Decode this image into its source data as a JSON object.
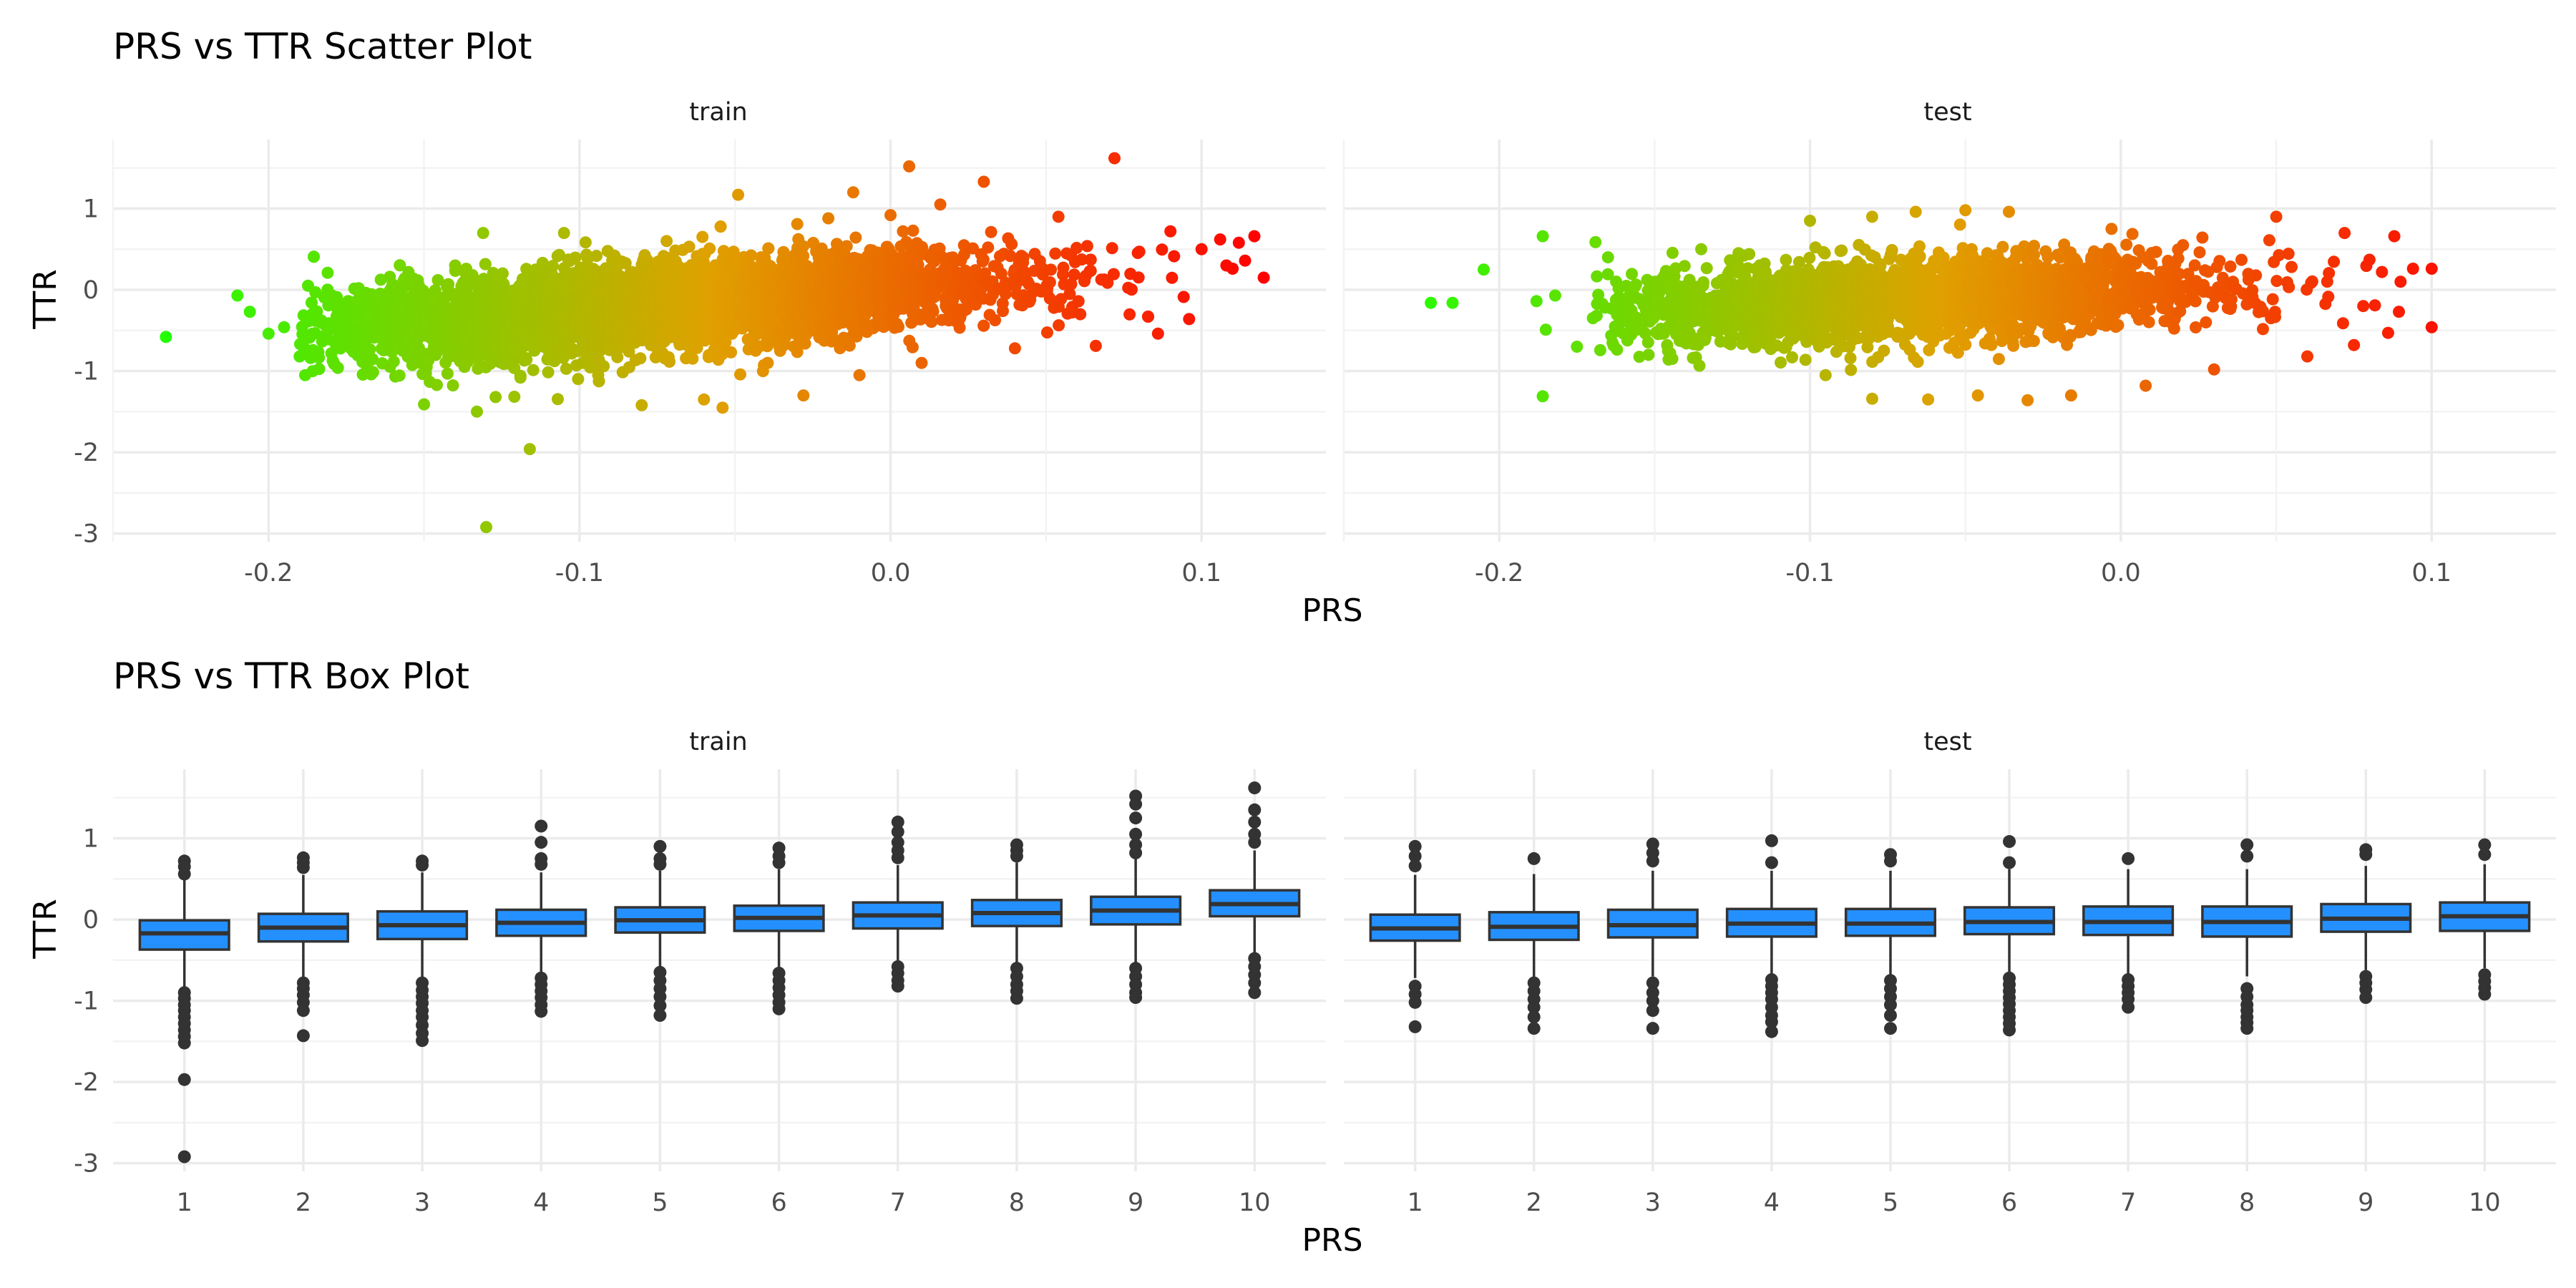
{
  "chart_data": [
    {
      "type": "scatter",
      "title": "PRS vs TTR Scatter Plot",
      "xlabel": "PRS",
      "ylabel": "TTR",
      "facets": [
        "train",
        "test"
      ],
      "xlim": [
        -0.25,
        0.14
      ],
      "ylim": [
        -3.1,
        1.85
      ],
      "xticks": [
        -0.2,
        -0.1,
        0.0,
        0.1
      ],
      "xtick_labels": [
        "-0.2",
        "-0.1",
        "0.0",
        "0.1"
      ],
      "yticks": [
        -3,
        -2,
        -1,
        0,
        1
      ],
      "ytick_labels": [
        "-3",
        "-2",
        "-1",
        "0",
        "1"
      ],
      "color_scale": {
        "low": "#22ff00",
        "mid": "#e0a000",
        "high": "#ff0000",
        "by": "PRS"
      },
      "grid": true,
      "legend": "none",
      "series": [
        {
          "facet": "train",
          "trend": {
            "intercept": 0.0,
            "slope": 2.8,
            "x_range": [
              -0.19,
              0.1
            ],
            "sd": 0.26
          },
          "points": [
            [
              -0.233,
              -0.58
            ],
            [
              -0.21,
              -0.07
            ],
            [
              -0.206,
              -0.27
            ],
            [
              -0.2,
              -0.54
            ],
            [
              -0.195,
              -0.46
            ],
            [
              -0.19,
              -0.82
            ],
            [
              -0.186,
              -0.3
            ],
            [
              -0.181,
              0.21
            ],
            [
              -0.176,
              -0.6
            ],
            [
              -0.171,
              0.02
            ],
            [
              -0.167,
              -1.04
            ],
            [
              -0.161,
              0.16
            ],
            [
              -0.155,
              0.22
            ],
            [
              -0.15,
              -1.41
            ],
            [
              -0.146,
              -0.35
            ],
            [
              -0.14,
              0.3
            ],
            [
              -0.133,
              -1.5
            ],
            [
              -0.131,
              0.7
            ],
            [
              -0.13,
              -2.92
            ],
            [
              -0.127,
              -1.32
            ],
            [
              -0.119,
              -1.08
            ],
            [
              -0.116,
              -1.96
            ],
            [
              -0.105,
              0.7
            ],
            [
              -0.101,
              -0.93
            ],
            [
              -0.094,
              -1.05
            ],
            [
              -0.08,
              -1.42
            ],
            [
              -0.072,
              0.6
            ],
            [
              -0.06,
              -1.35
            ],
            [
              -0.054,
              -1.45
            ],
            [
              -0.05,
              0.35
            ],
            [
              -0.049,
              1.17
            ],
            [
              -0.041,
              -1.0
            ],
            [
              -0.03,
              0.81
            ],
            [
              -0.028,
              -1.3
            ],
            [
              -0.02,
              0.88
            ],
            [
              -0.012,
              1.2
            ],
            [
              -0.01,
              -1.05
            ],
            [
              0.0,
              0.92
            ],
            [
              0.004,
              0.72
            ],
            [
              0.006,
              1.52
            ],
            [
              0.01,
              -0.9
            ],
            [
              0.016,
              1.05
            ],
            [
              0.03,
              1.33
            ],
            [
              0.04,
              -0.72
            ],
            [
              0.054,
              0.9
            ],
            [
              0.061,
              -0.3
            ],
            [
              0.066,
              -0.69
            ],
            [
              0.072,
              1.62
            ],
            [
              0.08,
              0.47
            ],
            [
              0.086,
              -0.54
            ],
            [
              0.09,
              0.72
            ],
            [
              0.096,
              -0.36
            ],
            [
              0.1,
              0.5
            ],
            [
              0.106,
              0.62
            ],
            [
              0.11,
              0.26
            ],
            [
              0.114,
              0.36
            ],
            [
              0.117,
              0.66
            ],
            [
              0.12,
              0.15
            ],
            [
              0.112,
              0.58
            ],
            [
              0.108,
              0.3
            ]
          ]
        },
        {
          "facet": "test",
          "trend": {
            "intercept": 0.0,
            "slope": 1.8,
            "x_range": [
              -0.17,
              0.09
            ],
            "sd": 0.25
          },
          "points": [
            [
              -0.222,
              -0.16
            ],
            [
              -0.215,
              -0.16
            ],
            [
              -0.205,
              0.25
            ],
            [
              -0.188,
              -0.14
            ],
            [
              -0.186,
              0.66
            ],
            [
              -0.186,
              -1.31
            ],
            [
              -0.185,
              -0.49
            ],
            [
              -0.182,
              -0.07
            ],
            [
              -0.175,
              -0.7
            ],
            [
              -0.165,
              0.4
            ],
            [
              -0.16,
              -0.54
            ],
            [
              -0.15,
              0.1
            ],
            [
              -0.145,
              -0.78
            ],
            [
              -0.135,
              0.5
            ],
            [
              -0.123,
              0.45
            ],
            [
              -0.1,
              0.85
            ],
            [
              -0.095,
              -1.05
            ],
            [
              -0.08,
              0.9
            ],
            [
              -0.08,
              -1.34
            ],
            [
              -0.066,
              0.96
            ],
            [
              -0.062,
              -1.35
            ],
            [
              -0.05,
              0.98
            ],
            [
              -0.046,
              -1.3
            ],
            [
              -0.036,
              0.96
            ],
            [
              -0.03,
              -1.36
            ],
            [
              -0.016,
              -1.3
            ],
            [
              -0.003,
              0.75
            ],
            [
              0.008,
              -1.18
            ],
            [
              0.02,
              0.55
            ],
            [
              0.03,
              -0.98
            ],
            [
              0.05,
              0.9
            ],
            [
              0.06,
              -0.82
            ],
            [
              0.072,
              0.7
            ],
            [
              0.075,
              -0.68
            ],
            [
              0.08,
              0.37
            ],
            [
              0.086,
              -0.53
            ],
            [
              0.084,
              0.22
            ],
            [
              0.09,
              0.1
            ],
            [
              0.094,
              0.26
            ],
            [
              0.1,
              0.26
            ],
            [
              0.1,
              -0.46
            ],
            [
              0.088,
              0.66
            ],
            [
              0.078,
              -0.2
            ]
          ]
        }
      ]
    },
    {
      "type": "box",
      "title": "PRS vs TTR Box Plot",
      "xlabel": "PRS",
      "ylabel": "TTR",
      "facets": [
        "train",
        "test"
      ],
      "categories": [
        "1",
        "2",
        "3",
        "4",
        "5",
        "6",
        "7",
        "8",
        "9",
        "10"
      ],
      "ylim": [
        -3.1,
        1.85
      ],
      "yticks": [
        -3,
        -2,
        -1,
        0,
        1
      ],
      "ytick_labels": [
        "-3",
        "-2",
        "-1",
        "0",
        "1"
      ],
      "box_color": "#2490ff",
      "grid": true,
      "series": [
        {
          "facet": "train",
          "boxes": [
            {
              "q1": -0.37,
              "median": -0.17,
              "q3": -0.01,
              "wlo": -0.83,
              "whi": 0.5,
              "outliers": [
                0.72,
                0.65,
                0.56,
                -0.9,
                -0.97,
                -1.05,
                -1.12,
                -1.2,
                -1.28,
                -1.36,
                -1.44,
                -1.52,
                -1.97,
                -2.92
              ]
            },
            {
              "q1": -0.27,
              "median": -0.1,
              "q3": 0.07,
              "wlo": -0.72,
              "whi": 0.55,
              "outliers": [
                0.76,
                0.7,
                0.64,
                -0.78,
                -0.85,
                -0.93,
                -1.02,
                -1.12,
                -1.43
              ]
            },
            {
              "q1": -0.24,
              "median": -0.07,
              "q3": 0.1,
              "wlo": -0.73,
              "whi": 0.58,
              "outliers": [
                0.72,
                0.67,
                -0.78,
                -0.87,
                -0.95,
                -1.03,
                -1.12,
                -1.2,
                -1.3,
                -1.4,
                -1.49
              ]
            },
            {
              "q1": -0.2,
              "median": -0.04,
              "q3": 0.12,
              "wlo": -0.65,
              "whi": 0.58,
              "outliers": [
                1.15,
                0.95,
                0.75,
                0.68,
                -0.72,
                -0.8,
                -0.88,
                -0.96,
                -1.05,
                -1.13
              ]
            },
            {
              "q1": -0.16,
              "median": -0.01,
              "q3": 0.15,
              "wlo": -0.62,
              "whi": 0.6,
              "outliers": [
                0.9,
                0.75,
                0.68,
                -0.65,
                -0.75,
                -0.85,
                -0.95,
                -1.06,
                -1.18
              ]
            },
            {
              "q1": -0.14,
              "median": 0.02,
              "q3": 0.17,
              "wlo": -0.6,
              "whi": 0.62,
              "outliers": [
                0.88,
                0.78,
                0.7,
                -0.66,
                -0.75,
                -0.84,
                -0.93,
                -1.02,
                -1.1
              ]
            },
            {
              "q1": -0.11,
              "median": 0.05,
              "q3": 0.21,
              "wlo": -0.55,
              "whi": 0.67,
              "outliers": [
                1.2,
                1.08,
                0.95,
                0.85,
                0.76,
                -0.58,
                -0.66,
                -0.75,
                -0.82
              ]
            },
            {
              "q1": -0.08,
              "median": 0.08,
              "q3": 0.24,
              "wlo": -0.55,
              "whi": 0.7,
              "outliers": [
                0.92,
                0.85,
                0.78,
                -0.6,
                -0.7,
                -0.8,
                -0.88,
                -0.97
              ]
            },
            {
              "q1": -0.06,
              "median": 0.11,
              "q3": 0.28,
              "wlo": -0.55,
              "whi": 0.75,
              "outliers": [
                1.52,
                1.42,
                1.25,
                1.05,
                0.92,
                0.82,
                -0.6,
                -0.7,
                -0.8,
                -0.9,
                -0.96
              ]
            },
            {
              "q1": 0.04,
              "median": 0.19,
              "q3": 0.36,
              "wlo": -0.42,
              "whi": 0.85,
              "outliers": [
                1.62,
                1.35,
                1.2,
                1.05,
                0.95,
                -0.48,
                -0.58,
                -0.68,
                -0.78,
                -0.9
              ]
            }
          ]
        },
        {
          "facet": "test",
          "boxes": [
            {
              "q1": -0.26,
              "median": -0.11,
              "q3": 0.06,
              "wlo": -0.72,
              "whi": 0.55,
              "outliers": [
                0.9,
                0.78,
                0.66,
                -0.82,
                -0.92,
                -1.02,
                -1.32
              ]
            },
            {
              "q1": -0.25,
              "median": -0.09,
              "q3": 0.09,
              "wlo": -0.72,
              "whi": 0.56,
              "outliers": [
                0.75,
                -0.78,
                -0.88,
                -0.98,
                -1.08,
                -1.2,
                -1.34
              ]
            },
            {
              "q1": -0.22,
              "median": -0.07,
              "q3": 0.12,
              "wlo": -0.7,
              "whi": 0.6,
              "outliers": [
                0.93,
                0.82,
                0.72,
                -0.78,
                -0.9,
                -1.0,
                -1.12,
                -1.34
              ]
            },
            {
              "q1": -0.21,
              "median": -0.05,
              "q3": 0.13,
              "wlo": -0.68,
              "whi": 0.6,
              "outliers": [
                0.97,
                0.7,
                -0.74,
                -0.82,
                -0.9,
                -0.98,
                -1.08,
                -1.18,
                -1.26,
                -1.38
              ]
            },
            {
              "q1": -0.2,
              "median": -0.05,
              "q3": 0.13,
              "wlo": -0.68,
              "whi": 0.6,
              "outliers": [
                0.8,
                0.72,
                -0.75,
                -0.85,
                -0.95,
                -1.05,
                -1.18,
                -1.34
              ]
            },
            {
              "q1": -0.18,
              "median": -0.03,
              "q3": 0.15,
              "wlo": -0.67,
              "whi": 0.62,
              "outliers": [
                0.96,
                0.7,
                -0.72,
                -0.8,
                -0.88,
                -0.96,
                -1.04,
                -1.12,
                -1.2,
                -1.28,
                -1.36
              ]
            },
            {
              "q1": -0.19,
              "median": -0.03,
              "q3": 0.16,
              "wlo": -0.68,
              "whi": 0.62,
              "outliers": [
                0.75,
                -0.74,
                -0.82,
                -0.9,
                -0.98,
                -1.08
              ]
            },
            {
              "q1": -0.21,
              "median": -0.03,
              "q3": 0.16,
              "wlo": -0.7,
              "whi": 0.62,
              "outliers": [
                0.92,
                0.78,
                -0.85,
                -0.95,
                -1.05,
                -1.12,
                -1.2,
                -1.27,
                -1.34
              ]
            },
            {
              "q1": -0.15,
              "median": 0.01,
              "q3": 0.19,
              "wlo": -0.62,
              "whi": 0.66,
              "outliers": [
                0.86,
                0.8,
                -0.7,
                -0.78,
                -0.86,
                -0.96
              ]
            },
            {
              "q1": -0.14,
              "median": 0.04,
              "q3": 0.21,
              "wlo": -0.6,
              "whi": 0.68,
              "outliers": [
                0.92,
                0.8,
                -0.68,
                -0.76,
                -0.84,
                -0.92
              ]
            }
          ]
        }
      ]
    }
  ]
}
